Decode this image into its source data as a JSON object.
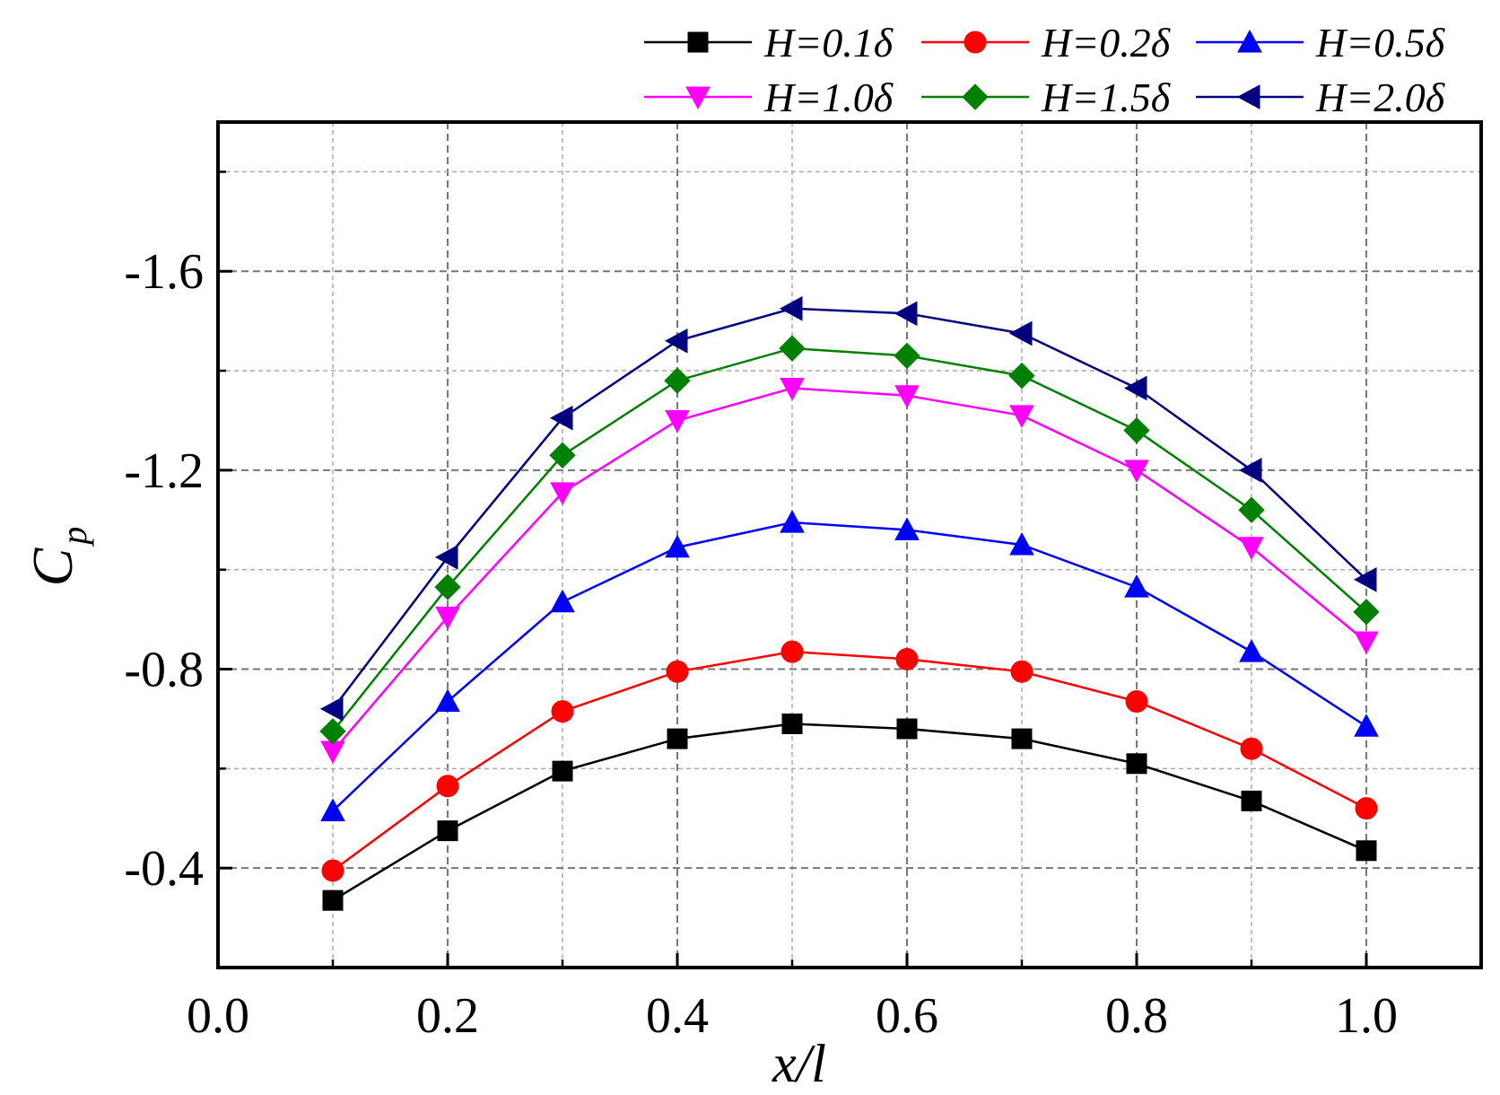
{
  "chart_data": {
    "type": "line",
    "xlabel": "x/l",
    "ylabel_main": "C",
    "ylabel_sub": "p",
    "xlim": [
      0.0,
      1.1
    ],
    "ylim": [
      -0.2,
      -1.9
    ],
    "y_axis_inverted": true,
    "xticks": [
      0.0,
      0.2,
      0.4,
      0.6,
      0.8,
      1.0
    ],
    "xtick_labels": [
      "0.0",
      "0.2",
      "0.4",
      "0.6",
      "0.8",
      "1.0"
    ],
    "yticks": [
      -0.4,
      -0.8,
      -1.2,
      -1.6
    ],
    "ytick_labels": [
      "-0.4",
      "-0.8",
      "-1.2",
      "-1.6"
    ],
    "grid": true,
    "legend_position": "top, above plot",
    "x": [
      0.1,
      0.2,
      0.3,
      0.4,
      0.5,
      0.6,
      0.7,
      0.8,
      0.9,
      1.0
    ],
    "series": [
      {
        "name": "H=0.1δ",
        "color": "#000000",
        "marker": "square",
        "values": [
          -0.335,
          -0.475,
          -0.595,
          -0.66,
          -0.69,
          -0.68,
          -0.66,
          -0.61,
          -0.535,
          -0.435
        ]
      },
      {
        "name": "H=0.2δ",
        "color": "#ff0000",
        "marker": "circle",
        "values": [
          -0.395,
          -0.565,
          -0.715,
          -0.795,
          -0.835,
          -0.82,
          -0.795,
          -0.735,
          -0.64,
          -0.52
        ]
      },
      {
        "name": "H=0.5δ",
        "color": "#0000ff",
        "marker": "triangle-up",
        "values": [
          -0.515,
          -0.735,
          -0.935,
          -1.045,
          -1.095,
          -1.08,
          -1.05,
          -0.965,
          -0.835,
          -0.685
        ]
      },
      {
        "name": "H=1.0δ",
        "color": "#ff00ff",
        "marker": "triangle-down",
        "values": [
          -0.635,
          -0.905,
          -1.155,
          -1.3,
          -1.365,
          -1.35,
          -1.31,
          -1.2,
          -1.045,
          -0.855
        ]
      },
      {
        "name": "H=1.5δ",
        "color": "#008000",
        "marker": "diamond",
        "values": [
          -0.675,
          -0.965,
          -1.23,
          -1.38,
          -1.445,
          -1.43,
          -1.39,
          -1.28,
          -1.12,
          -0.915
        ]
      },
      {
        "name": "H=2.0δ",
        "color": "#000080",
        "marker": "triangle-left",
        "values": [
          -0.72,
          -1.025,
          -1.305,
          -1.46,
          -1.525,
          -1.515,
          -1.475,
          -1.365,
          -1.2,
          -0.98
        ]
      }
    ]
  }
}
